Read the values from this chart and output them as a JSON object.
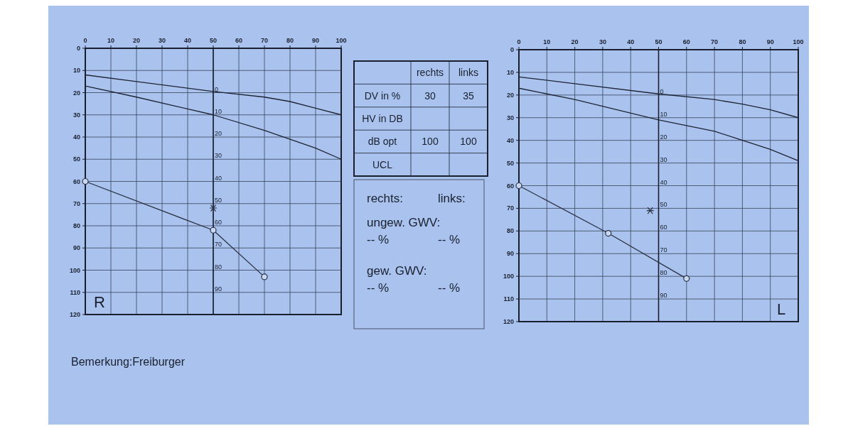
{
  "chart_data": [
    {
      "type": "line",
      "xlim": [
        0,
        100
      ],
      "xticks": [
        0,
        10,
        20,
        30,
        40,
        50,
        60,
        70,
        80,
        90,
        100
      ],
      "ylim": [
        120,
        0
      ],
      "yticks": [
        0,
        10,
        20,
        30,
        40,
        50,
        60,
        70,
        80,
        90,
        100,
        110,
        120
      ],
      "y2lim": [
        100,
        -20
      ],
      "y2ticks": [
        0,
        10,
        20,
        30,
        40,
        50,
        60,
        70,
        80,
        90
      ],
      "grid": true,
      "annotations": [
        "R",
        "Bemerkung:Freiburger"
      ],
      "series": [
        {
          "color": "#1e2433",
          "x": [
            0,
            20,
            50,
            70,
            80,
            90,
            100
          ],
          "values": [
            12,
            15,
            19.5,
            22,
            24,
            27,
            30
          ],
          "marker": "none"
        },
        {
          "color": "#1e2433",
          "x": [
            0,
            20,
            50,
            70,
            80,
            90,
            100
          ],
          "values": [
            17,
            22,
            30,
            37,
            41,
            45,
            50
          ],
          "marker": "none"
        },
        {
          "color": "#2a3040",
          "x": [
            0,
            50,
            70
          ],
          "values": [
            60,
            82,
            103
          ],
          "marker": "circle"
        },
        {
          "type": "scatter",
          "color": "#2a3040",
          "x": [
            50
          ],
          "values": [
            72
          ],
          "marker": "cross"
        }
      ]
    },
    {
      "type": "other",
      "categories": [
        "rechts",
        "links"
      ],
      "y_categories": [
        "DV in %",
        "HV in DB",
        "dB opt",
        "UCL"
      ],
      "cell_labels": [
        [
          "30",
          "35"
        ],
        [
          null,
          null
        ],
        [
          "100",
          "100"
        ],
        [
          null,
          null
        ]
      ]
    },
    {
      "type": "other",
      "annotations": [
        "rechts:",
        "links:",
        "ungew. GWV:",
        "-- %",
        "-- %",
        "gew. GWV:",
        "-- %",
        "-- %"
      ]
    },
    {
      "type": "line",
      "xlim": [
        0,
        100
      ],
      "xticks": [
        0,
        10,
        20,
        30,
        40,
        50,
        60,
        70,
        80,
        90,
        100
      ],
      "ylim": [
        120,
        0
      ],
      "yticks": [
        0,
        10,
        20,
        30,
        40,
        50,
        60,
        70,
        80,
        90,
        100,
        110,
        120
      ],
      "y2lim": [
        100,
        -20
      ],
      "y2ticks": [
        0,
        10,
        20,
        30,
        40,
        50,
        60,
        70,
        80,
        90
      ],
      "grid": true,
      "annotations": [
        "L"
      ],
      "series": [
        {
          "color": "#1e2433",
          "x": [
            0,
            20,
            50,
            70,
            80,
            90,
            100
          ],
          "values": [
            12,
            15,
            19.5,
            22,
            24,
            26.5,
            30
          ],
          "marker": "none"
        },
        {
          "color": "#1e2433",
          "x": [
            0,
            20,
            50,
            70,
            80,
            90,
            100
          ],
          "values": [
            17,
            22,
            31,
            36,
            40,
            44,
            49
          ],
          "marker": "none"
        },
        {
          "color": "#2a3040",
          "x": [
            0,
            32,
            60
          ],
          "values": [
            60,
            81,
            101
          ],
          "marker": "circle"
        },
        {
          "type": "scatter",
          "color": "#2a3040",
          "x": [
            47
          ],
          "values": [
            71
          ],
          "marker": "cross"
        }
      ]
    }
  ]
}
